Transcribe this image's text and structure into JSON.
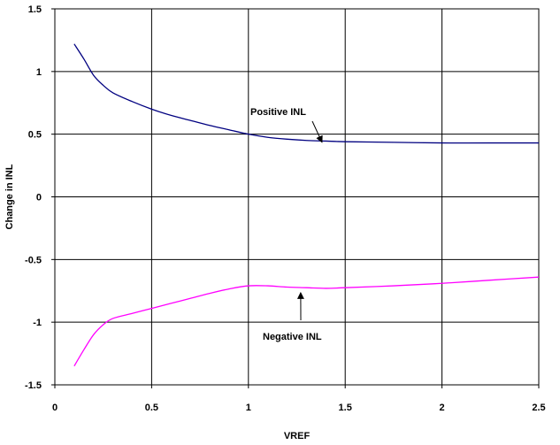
{
  "chart_data": {
    "type": "line",
    "title": "",
    "xlabel": "VREF",
    "ylabel": "Change in INL",
    "xlim": [
      0,
      2.5
    ],
    "ylim": [
      -1.5,
      1.5
    ],
    "xticks": [
      "0",
      "0.5",
      "1",
      "1.5",
      "2",
      "2.5"
    ],
    "yticks": [
      "1.5",
      "1",
      "0.5",
      "0",
      "-0.5",
      "-1",
      "-1.5"
    ],
    "grid": true,
    "series": [
      {
        "name": "Positive INL",
        "color": "#000080",
        "x": [
          0.1,
          0.15,
          0.2,
          0.25,
          0.3,
          0.4,
          0.5,
          0.6,
          0.7,
          0.8,
          0.9,
          1.0,
          1.1,
          1.2,
          1.3,
          1.4,
          1.5,
          1.75,
          2.0,
          2.25,
          2.5
        ],
        "y": [
          1.22,
          1.1,
          0.97,
          0.89,
          0.83,
          0.76,
          0.7,
          0.65,
          0.61,
          0.57,
          0.535,
          0.5,
          0.475,
          0.46,
          0.45,
          0.445,
          0.44,
          0.435,
          0.43,
          0.43,
          0.43
        ]
      },
      {
        "name": "Negative INL",
        "color": "#ff00ff",
        "x": [
          0.1,
          0.15,
          0.2,
          0.25,
          0.3,
          0.4,
          0.5,
          0.6,
          0.7,
          0.8,
          0.9,
          1.0,
          1.1,
          1.2,
          1.3,
          1.4,
          1.5,
          1.75,
          2.0,
          2.25,
          2.5
        ],
        "y": [
          -1.35,
          -1.22,
          -1.1,
          -1.02,
          -0.97,
          -0.93,
          -0.89,
          -0.85,
          -0.81,
          -0.77,
          -0.735,
          -0.71,
          -0.71,
          -0.72,
          -0.725,
          -0.73,
          -0.725,
          -0.71,
          -0.69,
          -0.665,
          -0.64
        ]
      }
    ],
    "annotations": [
      {
        "text": "Positive INL",
        "series": "Positive INL"
      },
      {
        "text": "Negative INL",
        "series": "Negative INL"
      }
    ]
  }
}
